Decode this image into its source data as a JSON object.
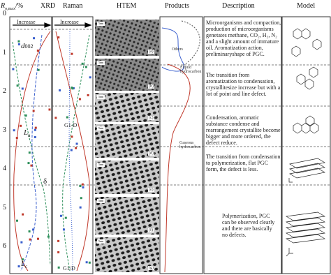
{
  "axis": {
    "label": "R",
    "label_sub": "o,max",
    "label_unit": "/%",
    "ticks": [
      "0",
      "1",
      "2",
      "3",
      "4",
      "5",
      "6"
    ]
  },
  "headers": {
    "xrd": "XRD",
    "raman": "Raman",
    "htem": "HTEM",
    "products": "Products",
    "description": "Description",
    "model": "Model"
  },
  "xrd": {
    "increase": "Increase",
    "d002": "d",
    "d002_sub": "002",
    "la": "L",
    "la_sub": "a",
    "lc": "L",
    "lc_sub": "c",
    "delta": "δ"
  },
  "raman": {
    "increase": "Increase",
    "g1d": "G1-D",
    "g1_over_d": "G1/D"
  },
  "htem": {
    "panels": [
      "(a)",
      "(b)",
      "(c)",
      "(d)",
      "(e)",
      "(f)",
      "(g)"
    ],
    "scale": "5nm"
  },
  "products": {
    "others": "Others",
    "liquid": "Liquid hydrocarbon",
    "gaseous": "Gaseous hydrocarbon"
  },
  "descriptions": [
    "Microorganisms and compaction, production of microorganisms genetates methane, CO₂, H₂, N₂ and a slight amount of immature oil. Aromatization action, preliminaryshape of PGC.",
    "The transition from aromatization to condensation, crystallitesize increase but with a lot of point and line defect.",
    "Condensation, aromatic substance condense and rearrangement crystallite become bigger and more ordered, the defect reduce.",
    "The transition from condensation to polymerization, flat PGC form, the defect is less.",
    "Polymerization, PGC can be observed clearly and there are basically no defects."
  ]
}
